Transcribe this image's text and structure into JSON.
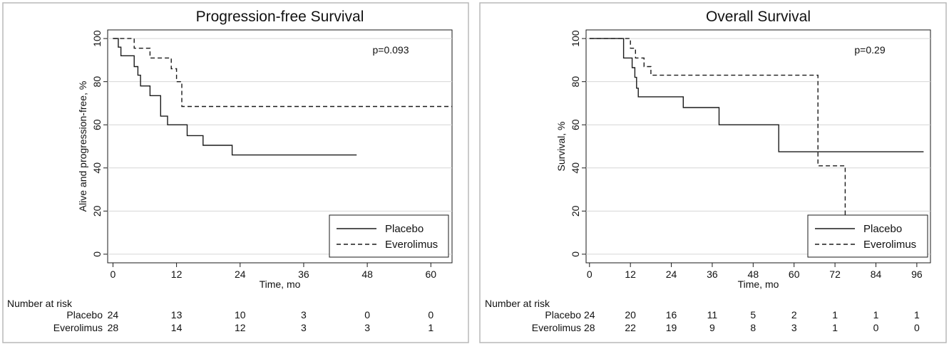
{
  "chart_data": [
    {
      "type": "line",
      "title": "Progression-free Survival",
      "xlabel": "Time, mo",
      "ylabel": "Alive and progression-free, %",
      "xlim": [
        -1,
        64
      ],
      "ylim": [
        -4,
        104
      ],
      "x_ticks": [
        0,
        12,
        24,
        36,
        48,
        60
      ],
      "x_tick_labels": [
        "0",
        "12",
        "24",
        "36",
        "48",
        "60"
      ],
      "y_ticks": [
        0,
        20,
        40,
        60,
        80,
        100
      ],
      "y_tick_labels": [
        "0",
        "20",
        "40",
        "60",
        "80",
        "100"
      ],
      "grid": true,
      "annotation": "p=0.093",
      "legend_position": "bottom-right",
      "series": [
        {
          "name": "Placebo",
          "style": "solid",
          "points": [
            [
              0,
              100
            ],
            [
              1,
              100
            ],
            [
              1,
              96
            ],
            [
              1.5,
              96
            ],
            [
              1.5,
              92
            ],
            [
              4,
              92
            ],
            [
              4,
              87
            ],
            [
              4.7,
              87
            ],
            [
              4.7,
              83
            ],
            [
              5.2,
              83
            ],
            [
              5.2,
              78
            ],
            [
              7,
              78
            ],
            [
              7,
              73.5
            ],
            [
              9,
              73.5
            ],
            [
              9,
              64
            ],
            [
              10.3,
              64
            ],
            [
              10.3,
              60
            ],
            [
              14,
              60
            ],
            [
              14,
              55
            ],
            [
              17,
              55
            ],
            [
              17,
              50.5
            ],
            [
              22.5,
              50.5
            ],
            [
              22.5,
              46
            ],
            [
              46,
              46
            ]
          ]
        },
        {
          "name": "Everolimus",
          "style": "dashed",
          "points": [
            [
              0,
              100
            ],
            [
              4,
              100
            ],
            [
              4,
              95.5
            ],
            [
              7,
              95.5
            ],
            [
              7,
              91
            ],
            [
              11,
              91
            ],
            [
              11,
              86
            ],
            [
              12,
              86
            ],
            [
              12,
              80
            ],
            [
              13,
              80
            ],
            [
              13,
              68.5
            ],
            [
              64,
              68.5
            ]
          ]
        }
      ],
      "risk_table": {
        "header": "Number at risk",
        "times": [
          0,
          12,
          24,
          36,
          48,
          60
        ],
        "rows": [
          {
            "label": "Placebo",
            "values": [
              "24",
              "13",
              "10",
              "3",
              "0",
              "0"
            ]
          },
          {
            "label": "Everolimus",
            "values": [
              "28",
              "14",
              "12",
              "3",
              "3",
              "1"
            ]
          }
        ]
      }
    },
    {
      "type": "line",
      "title": "Overall Survival",
      "xlabel": "Time, mo",
      "ylabel": "Survival, %",
      "xlim": [
        -1,
        100
      ],
      "ylim": [
        -4,
        104
      ],
      "x_ticks": [
        0,
        12,
        24,
        36,
        48,
        60,
        72,
        84,
        96
      ],
      "x_tick_labels": [
        "0",
        "12",
        "24",
        "36",
        "48",
        "60",
        "72",
        "84",
        "96"
      ],
      "y_ticks": [
        0,
        20,
        40,
        60,
        80,
        100
      ],
      "y_tick_labels": [
        "0",
        "20",
        "40",
        "60",
        "80",
        "100"
      ],
      "grid": true,
      "annotation": "p=0.29",
      "legend_position": "bottom-right",
      "series": [
        {
          "name": "Placebo",
          "style": "solid",
          "points": [
            [
              0,
              100
            ],
            [
              10,
              100
            ],
            [
              10,
              91
            ],
            [
              12.5,
              91
            ],
            [
              12.5,
              86.5
            ],
            [
              13.3,
              86.5
            ],
            [
              13.3,
              82
            ],
            [
              13.8,
              82
            ],
            [
              13.8,
              77
            ],
            [
              14.3,
              77
            ],
            [
              14.3,
              73
            ],
            [
              27.5,
              73
            ],
            [
              27.5,
              68
            ],
            [
              38,
              68
            ],
            [
              38,
              60
            ],
            [
              55.5,
              60
            ],
            [
              55.5,
              47.5
            ],
            [
              98,
              47.5
            ]
          ]
        },
        {
          "name": "Everolimus",
          "style": "dashed",
          "points": [
            [
              0,
              100
            ],
            [
              12,
              100
            ],
            [
              12,
              95.5
            ],
            [
              13.5,
              95.5
            ],
            [
              13.5,
              91
            ],
            [
              16,
              91
            ],
            [
              16,
              87
            ],
            [
              18,
              87
            ],
            [
              18,
              83
            ],
            [
              67,
              83
            ],
            [
              67,
              41
            ],
            [
              75,
              41
            ],
            [
              75,
              18
            ]
          ]
        }
      ],
      "risk_table": {
        "header": "Number at risk",
        "times": [
          0,
          12,
          24,
          36,
          48,
          60,
          72,
          84,
          96
        ],
        "rows": [
          {
            "label": "Placebo",
            "values": [
              "24",
              "20",
              "16",
              "11",
              "5",
              "2",
              "1",
              "1",
              "1"
            ]
          },
          {
            "label": "Everolimus",
            "values": [
              "28",
              "22",
              "19",
              "9",
              "8",
              "3",
              "1",
              "0",
              "0"
            ]
          }
        ]
      }
    }
  ]
}
